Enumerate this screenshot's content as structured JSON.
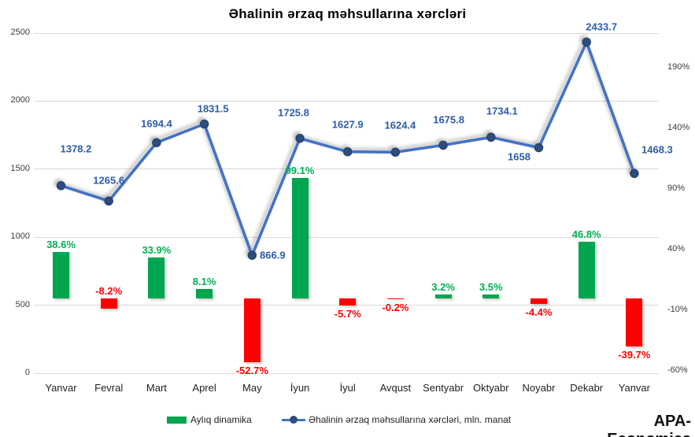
{
  "title": "Əhalinin ərzaq məhsullarına xərcləri",
  "branding": "APA-Economics",
  "legend": {
    "items": [
      {
        "label": "Aylıq dinamika",
        "swatch": "bar"
      },
      {
        "label": "Əhalinin ərzaq məhsullarına xərcləri, mln. manat",
        "swatch": "line"
      }
    ]
  },
  "colors": {
    "bar_positive": "#00a550",
    "bar_negative": "#fe0000",
    "bar_label_positive": "#00ae54",
    "bar_label_negative": "#fe0000",
    "line": "#4472c4",
    "marker_fill": "#2e4d7d",
    "marker_stroke": "#24456b",
    "line_label": "#2e5ca6",
    "grid": "#d9d9d9"
  },
  "chart_data": {
    "type": "combo",
    "title": "Əhalinin ərzaq məhsullarına xərcləri",
    "categories": [
      "Yanvar",
      "Fevral",
      "Mart",
      "Aprel",
      "May",
      "İyun",
      "İyul",
      "Avqust",
      "Sentyabr",
      "Oktyabr",
      "Noyabr",
      "Dekabr",
      "Yanvar"
    ],
    "series": [
      {
        "name": "Aylıq dinamika",
        "type": "bar",
        "axis": "right",
        "unit": "%",
        "values": [
          38.6,
          -8.2,
          33.9,
          8.1,
          -52.7,
          99.1,
          -5.7,
          -0.2,
          3.2,
          3.5,
          -4.4,
          46.8,
          -39.7
        ]
      },
      {
        "name": "Əhalinin ərzaq məhsullarına xərcləri, mln. manat",
        "type": "line",
        "axis": "left",
        "unit": "mln. manat",
        "values": [
          1378.2,
          1265.6,
          1694.4,
          1831.5,
          866.9,
          1725.8,
          1627.9,
          1624.4,
          1675.8,
          1734.1,
          1658,
          2433.7,
          1468.3
        ]
      }
    ],
    "left_axis": {
      "min": 0,
      "max": 2500,
      "ticks": [
        "2500",
        "2000",
        "1500",
        "1000",
        "500",
        "0"
      ],
      "tick_values": [
        2500,
        2000,
        1500,
        1000,
        500,
        0
      ]
    },
    "right_axis": {
      "ticks": [
        "190%",
        "140%",
        "90%",
        "40%",
        "-10%",
        "-60%"
      ],
      "tick_values": [
        190,
        140,
        90,
        40,
        -10,
        -60
      ]
    },
    "grid": true,
    "legend_position": "bottom"
  }
}
